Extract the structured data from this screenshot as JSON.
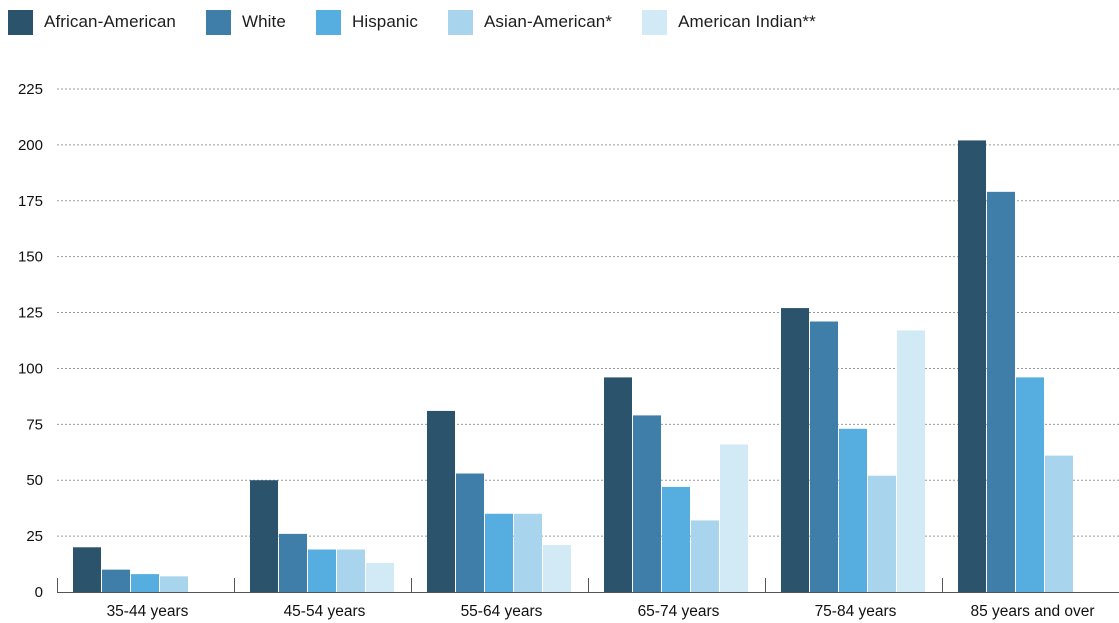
{
  "chart_data": {
    "type": "bar",
    "categories": [
      "35-44 years",
      "45-54 years",
      "55-64 years",
      "65-74 years",
      "75-84 years",
      "85 years and over"
    ],
    "series": [
      {
        "name": "African-American",
        "color": "#2b536b",
        "values": [
          20,
          50,
          81,
          96,
          127,
          202
        ]
      },
      {
        "name": "White",
        "color": "#3f7ea8",
        "values": [
          10,
          26,
          53,
          79,
          121,
          179
        ]
      },
      {
        "name": "Hispanic",
        "color": "#55ade0",
        "values": [
          8,
          19,
          35,
          47,
          73,
          96
        ]
      },
      {
        "name": "Asian-American*",
        "color": "#a8d4ee",
        "values": [
          7,
          19,
          35,
          32,
          52,
          61
        ]
      },
      {
        "name": "American Indian**",
        "color": "#d2e9f6",
        "values": [
          null,
          13,
          21,
          66,
          117,
          null
        ]
      }
    ],
    "y_ticks": [
      "0",
      "25",
      "50",
      "75",
      "100",
      "125",
      "150",
      "175",
      "200",
      "225"
    ],
    "ylim": [
      0,
      225
    ],
    "grid": true,
    "legend_position": "top-left"
  }
}
